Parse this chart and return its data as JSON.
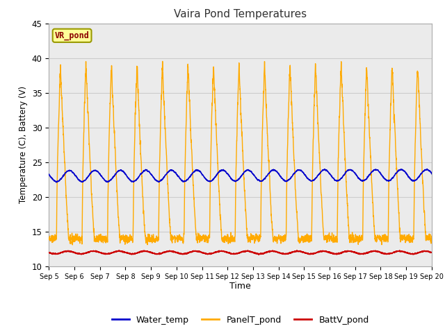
{
  "title": "Vaira Pond Temperatures",
  "xlabel": "Time",
  "ylabel": "Temperature (C), Battery (V)",
  "ylim": [
    10,
    45
  ],
  "x_tick_labels": [
    "Sep 5",
    "Sep 6",
    "Sep 7",
    "Sep 8",
    "Sep 9",
    "Sep 10",
    "Sep 11",
    "Sep 12",
    "Sep 13",
    "Sep 14",
    "Sep 15",
    "Sep 16",
    "Sep 17",
    "Sep 18",
    "Sep 19",
    "Sep 20"
  ],
  "legend_labels": [
    "Water_temp",
    "PanelT_pond",
    "BattV_pond"
  ],
  "legend_colors": [
    "#0000cc",
    "#ffaa00",
    "#cc0000"
  ],
  "annotation_text": "VR_pond",
  "annotation_bg": "#ffff99",
  "annotation_border": "#999900",
  "water_temp_color": "#0000cc",
  "panel_temp_color": "#ffaa00",
  "batt_color": "#cc0000",
  "grid_color": "#cccccc",
  "bg_color": "#ebebeb",
  "title_color": "#333333",
  "num_days": 15,
  "water_base": 23.0,
  "panel_night": 14.0,
  "batt_base": 12.0
}
